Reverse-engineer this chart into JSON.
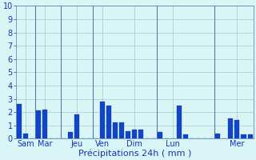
{
  "bar_values": [
    2.6,
    0.35,
    0.0,
    2.1,
    2.2,
    0.0,
    0.0,
    0.0,
    0.5,
    1.85,
    0.0,
    0.0,
    0.0,
    2.8,
    2.5,
    1.2,
    1.2,
    0.55,
    0.65,
    0.7,
    0.0,
    0.0,
    0.5,
    0.0,
    0.0,
    2.5,
    0.3,
    0.0,
    0.0,
    0.0,
    0.0,
    0.4,
    0.0,
    1.5,
    1.4,
    0.3,
    0.3
  ],
  "day_tick_positions": [
    1,
    4,
    9,
    13,
    18,
    24,
    34
  ],
  "day_labels": [
    "Sam",
    "Mar",
    "Jeu",
    "Ven",
    "Dim",
    "Lun",
    "Mer"
  ],
  "separator_positions": [
    2.5,
    6.5,
    11.5,
    21.5,
    30.5
  ],
  "xlabel": "Précipitations 24h ( mm )",
  "ylim": [
    0,
    10
  ],
  "yticks": [
    0,
    1,
    2,
    3,
    4,
    5,
    6,
    7,
    8,
    9,
    10
  ],
  "bar_color": "#1144cc",
  "bar_edge_color": "#0033aa",
  "background_color": "#daf5f5",
  "grid_color": "#a0cccc",
  "text_color": "#1133bb",
  "xlabel_fontsize": 8,
  "ytick_fontsize": 7,
  "xtick_fontsize": 7
}
